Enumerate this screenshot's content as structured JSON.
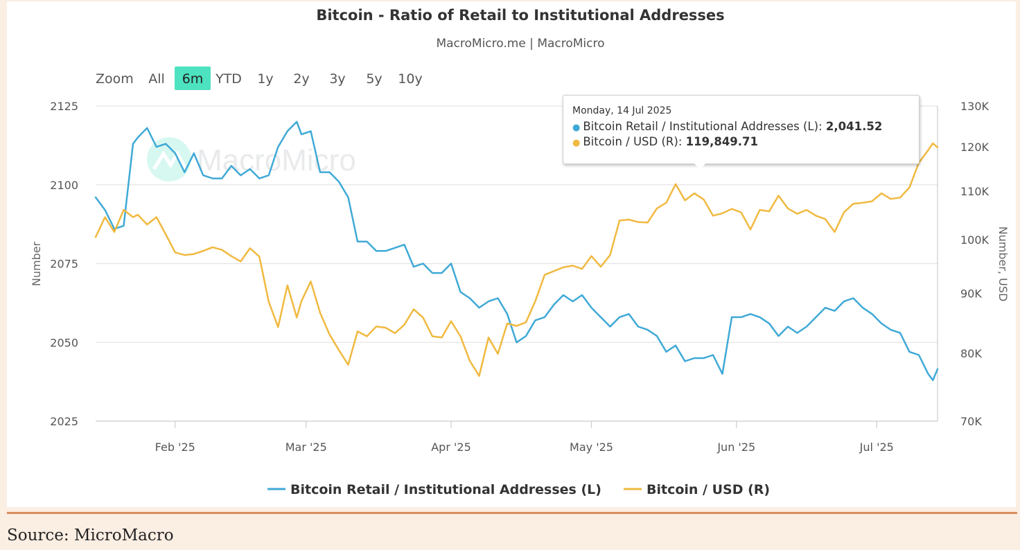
{
  "title": "Bitcoin - Ratio of Retail to Institutional Addresses",
  "subtitle": "MacroMicro.me | MacroMicro",
  "watermark": "MacroMicro",
  "source": "Source: MicroMacro",
  "zoom": {
    "label": "Zoom",
    "options": [
      "All",
      "6m",
      "YTD",
      "1y",
      "2y",
      "3y",
      "5y",
      "10y"
    ],
    "selected": "6m",
    "selected_color": "#4de2c0"
  },
  "tooltip": {
    "date": "Monday, 14 Jul 2025",
    "rows": [
      {
        "label": "Bitcoin Retail / Institutional Addresses (L):",
        "value": "2,041.52",
        "color": "#3fa9d6"
      },
      {
        "label": "Bitcoin / USD (R):",
        "value": "119,849.71",
        "color": "#f0b940"
      }
    ]
  },
  "chart_data": {
    "type": "line",
    "title": "Bitcoin - Ratio of Retail to Institutional Addresses",
    "subtitle": "MacroMicro.me | MacroMicro",
    "x_tick_labels": [
      "Feb '25",
      "Mar '25",
      "Apr '25",
      "May '25",
      "Jun '25",
      "Jul '25"
    ],
    "x_tick_dates": [
      "2025-02-01",
      "2025-03-01",
      "2025-04-01",
      "2025-05-01",
      "2025-06-01",
      "2025-07-01"
    ],
    "xlim": [
      "2025-01-15",
      "2025-07-14"
    ],
    "y_left": {
      "label": "Number",
      "ticks": [
        2025,
        2050,
        2075,
        2100,
        2125
      ],
      "tick_labels": [
        "2025",
        "2050",
        "2075",
        "2100",
        "2125"
      ],
      "range": [
        2025,
        2125
      ]
    },
    "y_right": {
      "label": "Number, USD",
      "scale": "log",
      "ticks": [
        70000,
        80000,
        90000,
        100000,
        110000,
        120000,
        130000
      ],
      "tick_labels": [
        "70K",
        "80K",
        "90K",
        "100K",
        "110K",
        "120K",
        "130K"
      ],
      "range": [
        70000,
        130000
      ]
    },
    "grid": true,
    "legend": "bottom-center",
    "series": [
      {
        "name": "Bitcoin Retail / Institutional Addresses (L)",
        "axis": "left",
        "color": "#3fa9d6",
        "x": [
          "2025-01-15",
          "2025-01-17",
          "2025-01-19",
          "2025-01-21",
          "2025-01-23",
          "2025-01-24",
          "2025-01-26",
          "2025-01-28",
          "2025-01-30",
          "2025-02-01",
          "2025-02-03",
          "2025-02-05",
          "2025-02-07",
          "2025-02-09",
          "2025-02-11",
          "2025-02-13",
          "2025-02-15",
          "2025-02-17",
          "2025-02-19",
          "2025-02-21",
          "2025-02-23",
          "2025-02-25",
          "2025-02-27",
          "2025-02-28",
          "2025-03-02",
          "2025-03-04",
          "2025-03-06",
          "2025-03-08",
          "2025-03-10",
          "2025-03-12",
          "2025-03-14",
          "2025-03-16",
          "2025-03-18",
          "2025-03-20",
          "2025-03-22",
          "2025-03-24",
          "2025-03-26",
          "2025-03-28",
          "2025-03-30",
          "2025-04-01",
          "2025-04-03",
          "2025-04-05",
          "2025-04-07",
          "2025-04-09",
          "2025-04-11",
          "2025-04-13",
          "2025-04-15",
          "2025-04-17",
          "2025-04-19",
          "2025-04-21",
          "2025-04-23",
          "2025-04-25",
          "2025-04-27",
          "2025-04-29",
          "2025-05-01",
          "2025-05-03",
          "2025-05-05",
          "2025-05-07",
          "2025-05-09",
          "2025-05-11",
          "2025-05-13",
          "2025-05-15",
          "2025-05-17",
          "2025-05-19",
          "2025-05-21",
          "2025-05-23",
          "2025-05-25",
          "2025-05-27",
          "2025-05-29",
          "2025-05-31",
          "2025-06-02",
          "2025-06-04",
          "2025-06-06",
          "2025-06-08",
          "2025-06-10",
          "2025-06-12",
          "2025-06-14",
          "2025-06-16",
          "2025-06-18",
          "2025-06-20",
          "2025-06-22",
          "2025-06-24",
          "2025-06-26",
          "2025-06-28",
          "2025-06-30",
          "2025-07-02",
          "2025-07-04",
          "2025-07-06",
          "2025-07-08",
          "2025-07-10",
          "2025-07-12",
          "2025-07-13",
          "2025-07-14"
        ],
        "values": [
          2096,
          2092,
          2086,
          2087,
          2113,
          2115,
          2118,
          2112,
          2113,
          2110,
          2104,
          2110,
          2103,
          2102,
          2102,
          2106,
          2103,
          2105,
          2102,
          2103,
          2112,
          2117,
          2120,
          2116,
          2117,
          2104,
          2104,
          2101,
          2096,
          2082,
          2082,
          2079,
          2079,
          2080,
          2081,
          2074,
          2075,
          2072,
          2072,
          2075,
          2066,
          2064,
          2061,
          2063,
          2064,
          2059,
          2050,
          2052,
          2057,
          2058,
          2062,
          2065,
          2063,
          2065,
          2061,
          2058,
          2055,
          2058,
          2059,
          2055,
          2054,
          2052,
          2047,
          2049,
          2044,
          2045,
          2045,
          2046,
          2040,
          2058,
          2058,
          2059,
          2058,
          2056,
          2052,
          2055,
          2053,
          2055,
          2058,
          2061,
          2060,
          2063,
          2064,
          2061,
          2059,
          2056,
          2054,
          2053,
          2047,
          2046,
          2040,
          2038,
          2041.52
        ]
      },
      {
        "name": "Bitcoin / USD (R)",
        "axis": "right",
        "color": "#f0b940",
        "x": [
          "2025-01-15",
          "2025-01-17",
          "2025-01-19",
          "2025-01-21",
          "2025-01-23",
          "2025-01-24",
          "2025-01-26",
          "2025-01-28",
          "2025-01-30",
          "2025-02-01",
          "2025-02-03",
          "2025-02-05",
          "2025-02-07",
          "2025-02-09",
          "2025-02-11",
          "2025-02-13",
          "2025-02-15",
          "2025-02-17",
          "2025-02-19",
          "2025-02-21",
          "2025-02-23",
          "2025-02-25",
          "2025-02-27",
          "2025-02-28",
          "2025-03-02",
          "2025-03-04",
          "2025-03-06",
          "2025-03-08",
          "2025-03-10",
          "2025-03-12",
          "2025-03-14",
          "2025-03-16",
          "2025-03-18",
          "2025-03-20",
          "2025-03-22",
          "2025-03-24",
          "2025-03-26",
          "2025-03-28",
          "2025-03-30",
          "2025-04-01",
          "2025-04-03",
          "2025-04-05",
          "2025-04-07",
          "2025-04-09",
          "2025-04-11",
          "2025-04-13",
          "2025-04-15",
          "2025-04-17",
          "2025-04-19",
          "2025-04-21",
          "2025-04-23",
          "2025-04-25",
          "2025-04-27",
          "2025-04-29",
          "2025-05-01",
          "2025-05-03",
          "2025-05-05",
          "2025-05-07",
          "2025-05-09",
          "2025-05-11",
          "2025-05-13",
          "2025-05-15",
          "2025-05-17",
          "2025-05-19",
          "2025-05-21",
          "2025-05-23",
          "2025-05-25",
          "2025-05-27",
          "2025-05-29",
          "2025-05-31",
          "2025-06-02",
          "2025-06-04",
          "2025-06-06",
          "2025-06-08",
          "2025-06-10",
          "2025-06-12",
          "2025-06-14",
          "2025-06-16",
          "2025-06-18",
          "2025-06-20",
          "2025-06-22",
          "2025-06-24",
          "2025-06-26",
          "2025-06-28",
          "2025-06-30",
          "2025-07-02",
          "2025-07-04",
          "2025-07-06",
          "2025-07-08",
          "2025-07-10",
          "2025-07-12",
          "2025-07-13",
          "2025-07-14"
        ],
        "values": [
          100500,
          104500,
          101500,
          106000,
          104500,
          105000,
          103000,
          104500,
          101000,
          97500,
          97000,
          97200,
          97800,
          98500,
          98000,
          96800,
          95800,
          98300,
          96700,
          88500,
          84200,
          91400,
          85800,
          88600,
          92100,
          86600,
          83000,
          80500,
          78200,
          83500,
          82700,
          84300,
          84100,
          83200,
          84600,
          87200,
          85800,
          82700,
          82500,
          85200,
          82700,
          78800,
          76500,
          82500,
          79900,
          84800,
          84400,
          85000,
          88600,
          93300,
          94000,
          94700,
          95000,
          94400,
          96800,
          94800,
          97000,
          103800,
          104000,
          103500,
          103400,
          106300,
          107500,
          111500,
          108000,
          109500,
          108200,
          104800,
          105300,
          106200,
          105500,
          102000,
          106000,
          105700,
          109000,
          106300,
          105200,
          106000,
          104800,
          104100,
          101500,
          105500,
          107300,
          107500,
          107800,
          109500,
          108300,
          108600,
          110800,
          116300,
          119200,
          120800,
          119849.71
        ]
      }
    ]
  }
}
